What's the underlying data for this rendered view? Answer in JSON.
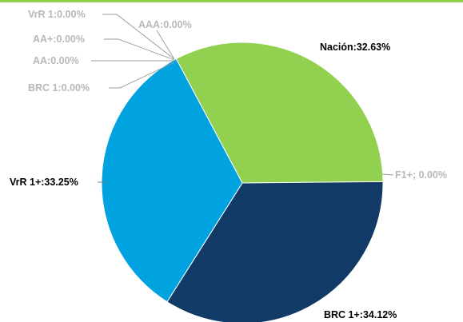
{
  "chart_data": {
    "type": "pie",
    "slices": [
      {
        "label": "Nación",
        "value": 32.63,
        "text": "Nación:32.63%",
        "color": "#92d050"
      },
      {
        "label": "F1+",
        "value": 0.0,
        "text": "F1+; 0.00%",
        "color": "#c8c8c8"
      },
      {
        "label": "BRC 1+",
        "value": 34.12,
        "text": "BRC 1+:34.12%",
        "color": "#123a66"
      },
      {
        "label": "VrR 1+",
        "value": 33.25,
        "text": "VrR 1+:33.25%",
        "color": "#00a2e0"
      },
      {
        "label": "BRC 1",
        "value": 0.0,
        "text": "BRC 1:0.00%",
        "color": "#c8c8c8"
      },
      {
        "label": "AA",
        "value": 0.0,
        "text": "AA:0.00%",
        "color": "#c8c8c8"
      },
      {
        "label": "AA+",
        "value": 0.0,
        "text": "AA+:0.00%",
        "color": "#c8c8c8"
      },
      {
        "label": "VrR 1",
        "value": 0.0,
        "text": "VrR 1:0.00%",
        "color": "#c8c8c8"
      },
      {
        "label": "AAA",
        "value": 0.0,
        "text": "AAA:0.00%",
        "color": "#c8c8c8"
      }
    ],
    "frame_color": "#92d050",
    "major_label_color": "#000000",
    "minor_label_color": "#b8b8b8"
  }
}
